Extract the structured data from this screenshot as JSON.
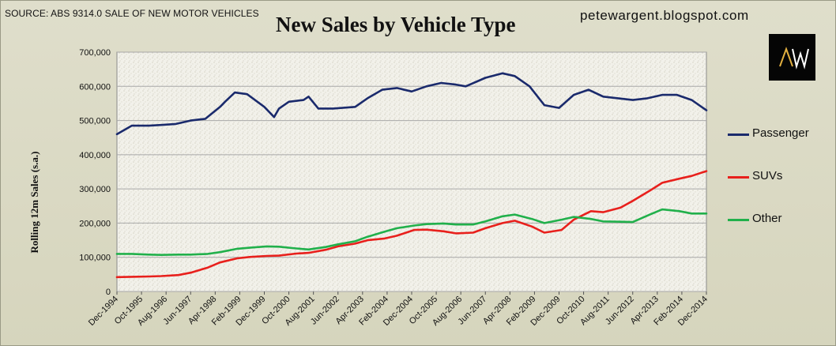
{
  "header": {
    "source": "SOURCE: ABS 9314.0 SALE OF NEW MOTOR VEHICLES",
    "title": "New Sales by Vehicle Type",
    "site": "petewargent.blogspot.com",
    "logo_text": "AW"
  },
  "colors": {
    "plot_background": "#efeee6",
    "gridline": "#a8a8a8",
    "passenger": "#1a2a6c",
    "suvs": "#e8201c",
    "other": "#21b04b"
  },
  "chart_data": {
    "type": "line",
    "title": "New Sales by Vehicle Type",
    "ylabel": "Rolling 12m Sales (s.a.)",
    "xlabel": "",
    "ylim": [
      0,
      700000
    ],
    "yticks": [
      "0",
      "100,000",
      "200,000",
      "300,000",
      "400,000",
      "500,000",
      "600,000",
      "700,000"
    ],
    "grid": true,
    "legend_placement": "right",
    "x_start": "Dec-1994",
    "x_end": "Dec-2014",
    "xticks": [
      "Dec-1994",
      "Oct-1995",
      "Aug-1996",
      "Jun-1997",
      "Apr-1998",
      "Feb-1999",
      "Dec-1999",
      "Oct-2000",
      "Aug-2001",
      "Jun-2002",
      "Apr-2003",
      "Feb-2004",
      "Dec-2004",
      "Oct-2005",
      "Aug-2006",
      "Jun-2007",
      "Apr-2008",
      "Feb-2009",
      "Dec-2009",
      "Oct-2010",
      "Aug-2011",
      "Jun-2012",
      "Apr-2013",
      "Feb-2014",
      "Dec-2014"
    ],
    "series": [
      {
        "name": "Passenger",
        "x": [
          "Dec-1994",
          "Jun-1995",
          "Jan-1996",
          "Jun-1996",
          "Dec-1996",
          "Jun-1997",
          "Dec-1997",
          "Jun-1998",
          "Aug-1998",
          "Dec-1998",
          "Feb-1999",
          "May-1999",
          "Dec-1999",
          "Apr-2000",
          "Jun-2000",
          "Oct-2000",
          "Apr-2001",
          "Jun-2001",
          "Oct-2001",
          "Apr-2002",
          "Jan-2003",
          "Jun-2003",
          "Dec-2003",
          "Jun-2004",
          "Dec-2004",
          "Jun-2005",
          "Dec-2005",
          "Jun-2006",
          "Oct-2006",
          "Jun-2007",
          "Jan-2008",
          "Jun-2008",
          "Dec-2008",
          "Jun-2009",
          "Dec-2009",
          "Jun-2010",
          "Dec-2010",
          "Jun-2011",
          "Dec-2011",
          "Jun-2012",
          "Dec-2012",
          "Jun-2013",
          "Dec-2013",
          "Jun-2014",
          "Dec-2014"
        ],
        "values": [
          460000,
          485000,
          485000,
          487000,
          490000,
          500000,
          505000,
          540000,
          555000,
          582000,
          580000,
          577000,
          540000,
          510000,
          535000,
          555000,
          560000,
          570000,
          535000,
          535000,
          540000,
          565000,
          590000,
          595000,
          585000,
          600000,
          610000,
          605000,
          600000,
          625000,
          638000,
          630000,
          600000,
          545000,
          537000,
          575000,
          590000,
          570000,
          565000,
          560000,
          565000,
          575000,
          575000,
          560000,
          530000
        ]
      },
      {
        "name": "SUVs",
        "x": [
          "Dec-1994",
          "Jun-1995",
          "Jan-1996",
          "Jun-1996",
          "Jan-1997",
          "Jun-1997",
          "Jan-1998",
          "Jun-1998",
          "Jan-1999",
          "Jun-1999",
          "Jan-2000",
          "Jun-2000",
          "Jan-2001",
          "Jun-2001",
          "Jan-2002",
          "Jun-2002",
          "Jan-2003",
          "Jun-2003",
          "Jan-2004",
          "Jun-2004",
          "Jan-2005",
          "Jun-2005",
          "Jan-2006",
          "Jun-2006",
          "Jan-2007",
          "Jun-2007",
          "Jan-2008",
          "Jun-2008",
          "Jan-2009",
          "Jun-2009",
          "Jan-2010",
          "Jun-2010",
          "Jan-2011",
          "Jun-2011",
          "Jan-2012",
          "Jun-2012",
          "Jan-2013",
          "Jun-2013",
          "Jan-2014",
          "Jun-2014",
          "Dec-2014"
        ],
        "values": [
          42000,
          43000,
          44000,
          45000,
          48000,
          55000,
          70000,
          85000,
          97000,
          101000,
          104000,
          105000,
          111000,
          113000,
          122000,
          132000,
          140000,
          150000,
          155000,
          163000,
          180000,
          181000,
          176000,
          170000,
          172000,
          185000,
          200000,
          207000,
          190000,
          172000,
          180000,
          210000,
          235000,
          232000,
          245000,
          265000,
          295000,
          318000,
          330000,
          338000,
          352000
        ]
      },
      {
        "name": "Other",
        "x": [
          "Dec-1994",
          "Jun-1995",
          "Jan-1996",
          "Jun-1996",
          "Jan-1997",
          "Jun-1997",
          "Jan-1998",
          "Jun-1998",
          "Jan-1999",
          "Jun-1999",
          "Jan-2000",
          "Jun-2000",
          "Jan-2001",
          "Jun-2001",
          "Jan-2002",
          "Jun-2002",
          "Jan-2003",
          "Jun-2003",
          "Jan-2004",
          "Jun-2004",
          "Jan-2005",
          "Jun-2005",
          "Jan-2006",
          "Jun-2006",
          "Jan-2007",
          "Jun-2007",
          "Jan-2008",
          "Jun-2008",
          "Jan-2009",
          "Jun-2009",
          "Jan-2010",
          "Jun-2010",
          "Jan-2011",
          "Jun-2011",
          "Jan-2012",
          "Jun-2012",
          "Jan-2013",
          "Jun-2013",
          "Jan-2014",
          "Jun-2014",
          "Dec-2014"
        ],
        "values": [
          110000,
          110000,
          108000,
          107000,
          108000,
          108000,
          110000,
          115000,
          125000,
          128000,
          132000,
          131000,
          126000,
          123000,
          130000,
          138000,
          147000,
          160000,
          175000,
          185000,
          193000,
          197000,
          199000,
          196000,
          196000,
          205000,
          220000,
          225000,
          212000,
          200000,
          210000,
          218000,
          212000,
          205000,
          204000,
          203000,
          225000,
          240000,
          235000,
          228000,
          228000
        ]
      }
    ]
  }
}
